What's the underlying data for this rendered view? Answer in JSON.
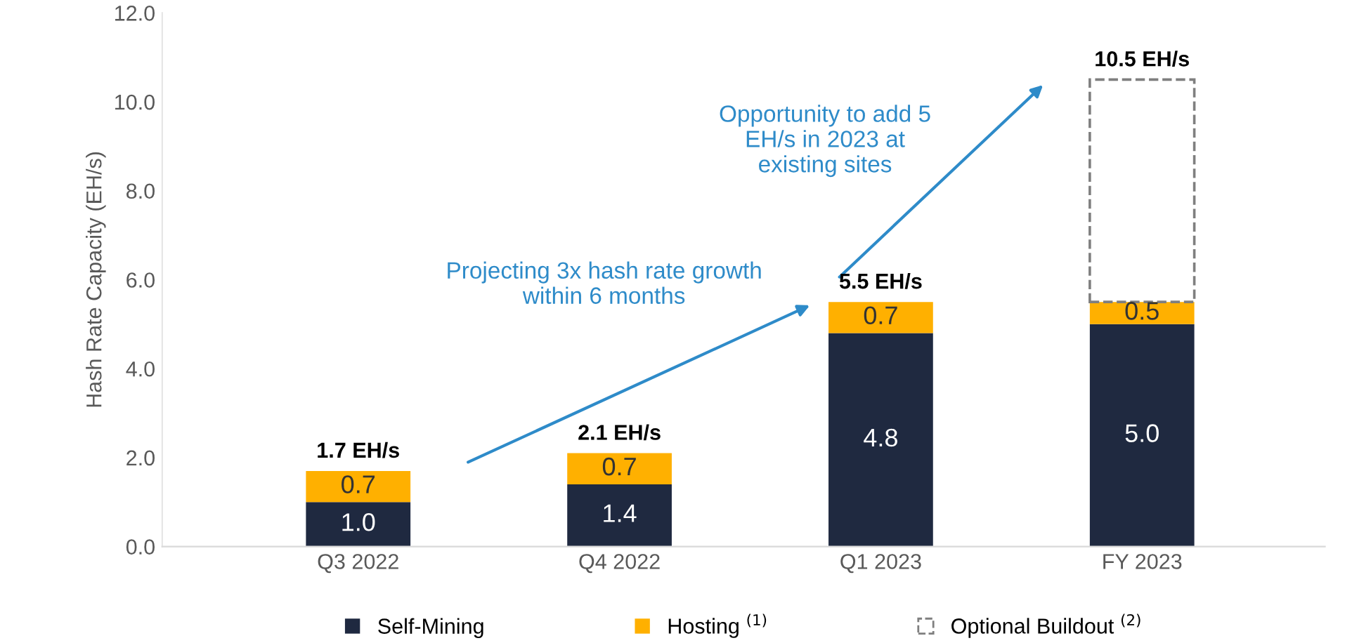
{
  "chart_data": {
    "type": "bar",
    "stacked": true,
    "ylabel": "Hash Rate Capacity (EH/s)",
    "categories": [
      "Q3 2022",
      "Q4 2022",
      "Q1 2023",
      "FY 2023"
    ],
    "series": [
      {
        "name": "Self-Mining",
        "color": "#1f2940",
        "values": [
          1.0,
          1.4,
          4.8,
          5.0
        ],
        "value_labels": [
          "1.0",
          "1.4",
          "4.8",
          "5.0"
        ]
      },
      {
        "name": "Hosting $^{(1)}$",
        "color": "#ffb000",
        "values": [
          0.7,
          0.7,
          0.7,
          0.5
        ],
        "value_labels": [
          "0.7",
          "0.7",
          "0.7",
          "0.5"
        ]
      },
      {
        "name": "Optional Buildout $^{(2)}$",
        "color": "#7f7f7f",
        "line_style": "dashed",
        "values": [
          null,
          null,
          null,
          5.0
        ]
      }
    ],
    "totals": [
      "1.7 EH/s",
      "2.1 EH/s",
      "5.5 EH/s",
      "10.5 EH/s"
    ],
    "ylim": [
      0,
      12
    ],
    "yticks": [
      {
        "value": 0,
        "label": "0.0"
      },
      {
        "value": 2,
        "label": "2.0"
      },
      {
        "value": 4,
        "label": "4.0"
      },
      {
        "value": 6,
        "label": "6.0"
      },
      {
        "value": 8,
        "label": "8.0"
      },
      {
        "value": 10,
        "label": "10.0"
      },
      {
        "value": 12,
        "label": "12.0"
      }
    ],
    "annotations": [
      "Projecting 3x hash rate growth\nwithin 6 months",
      "Opportunity to add 5\nEH/s in 2023 at\nexisting sites"
    ],
    "legend": "bottom",
    "grid": false
  }
}
